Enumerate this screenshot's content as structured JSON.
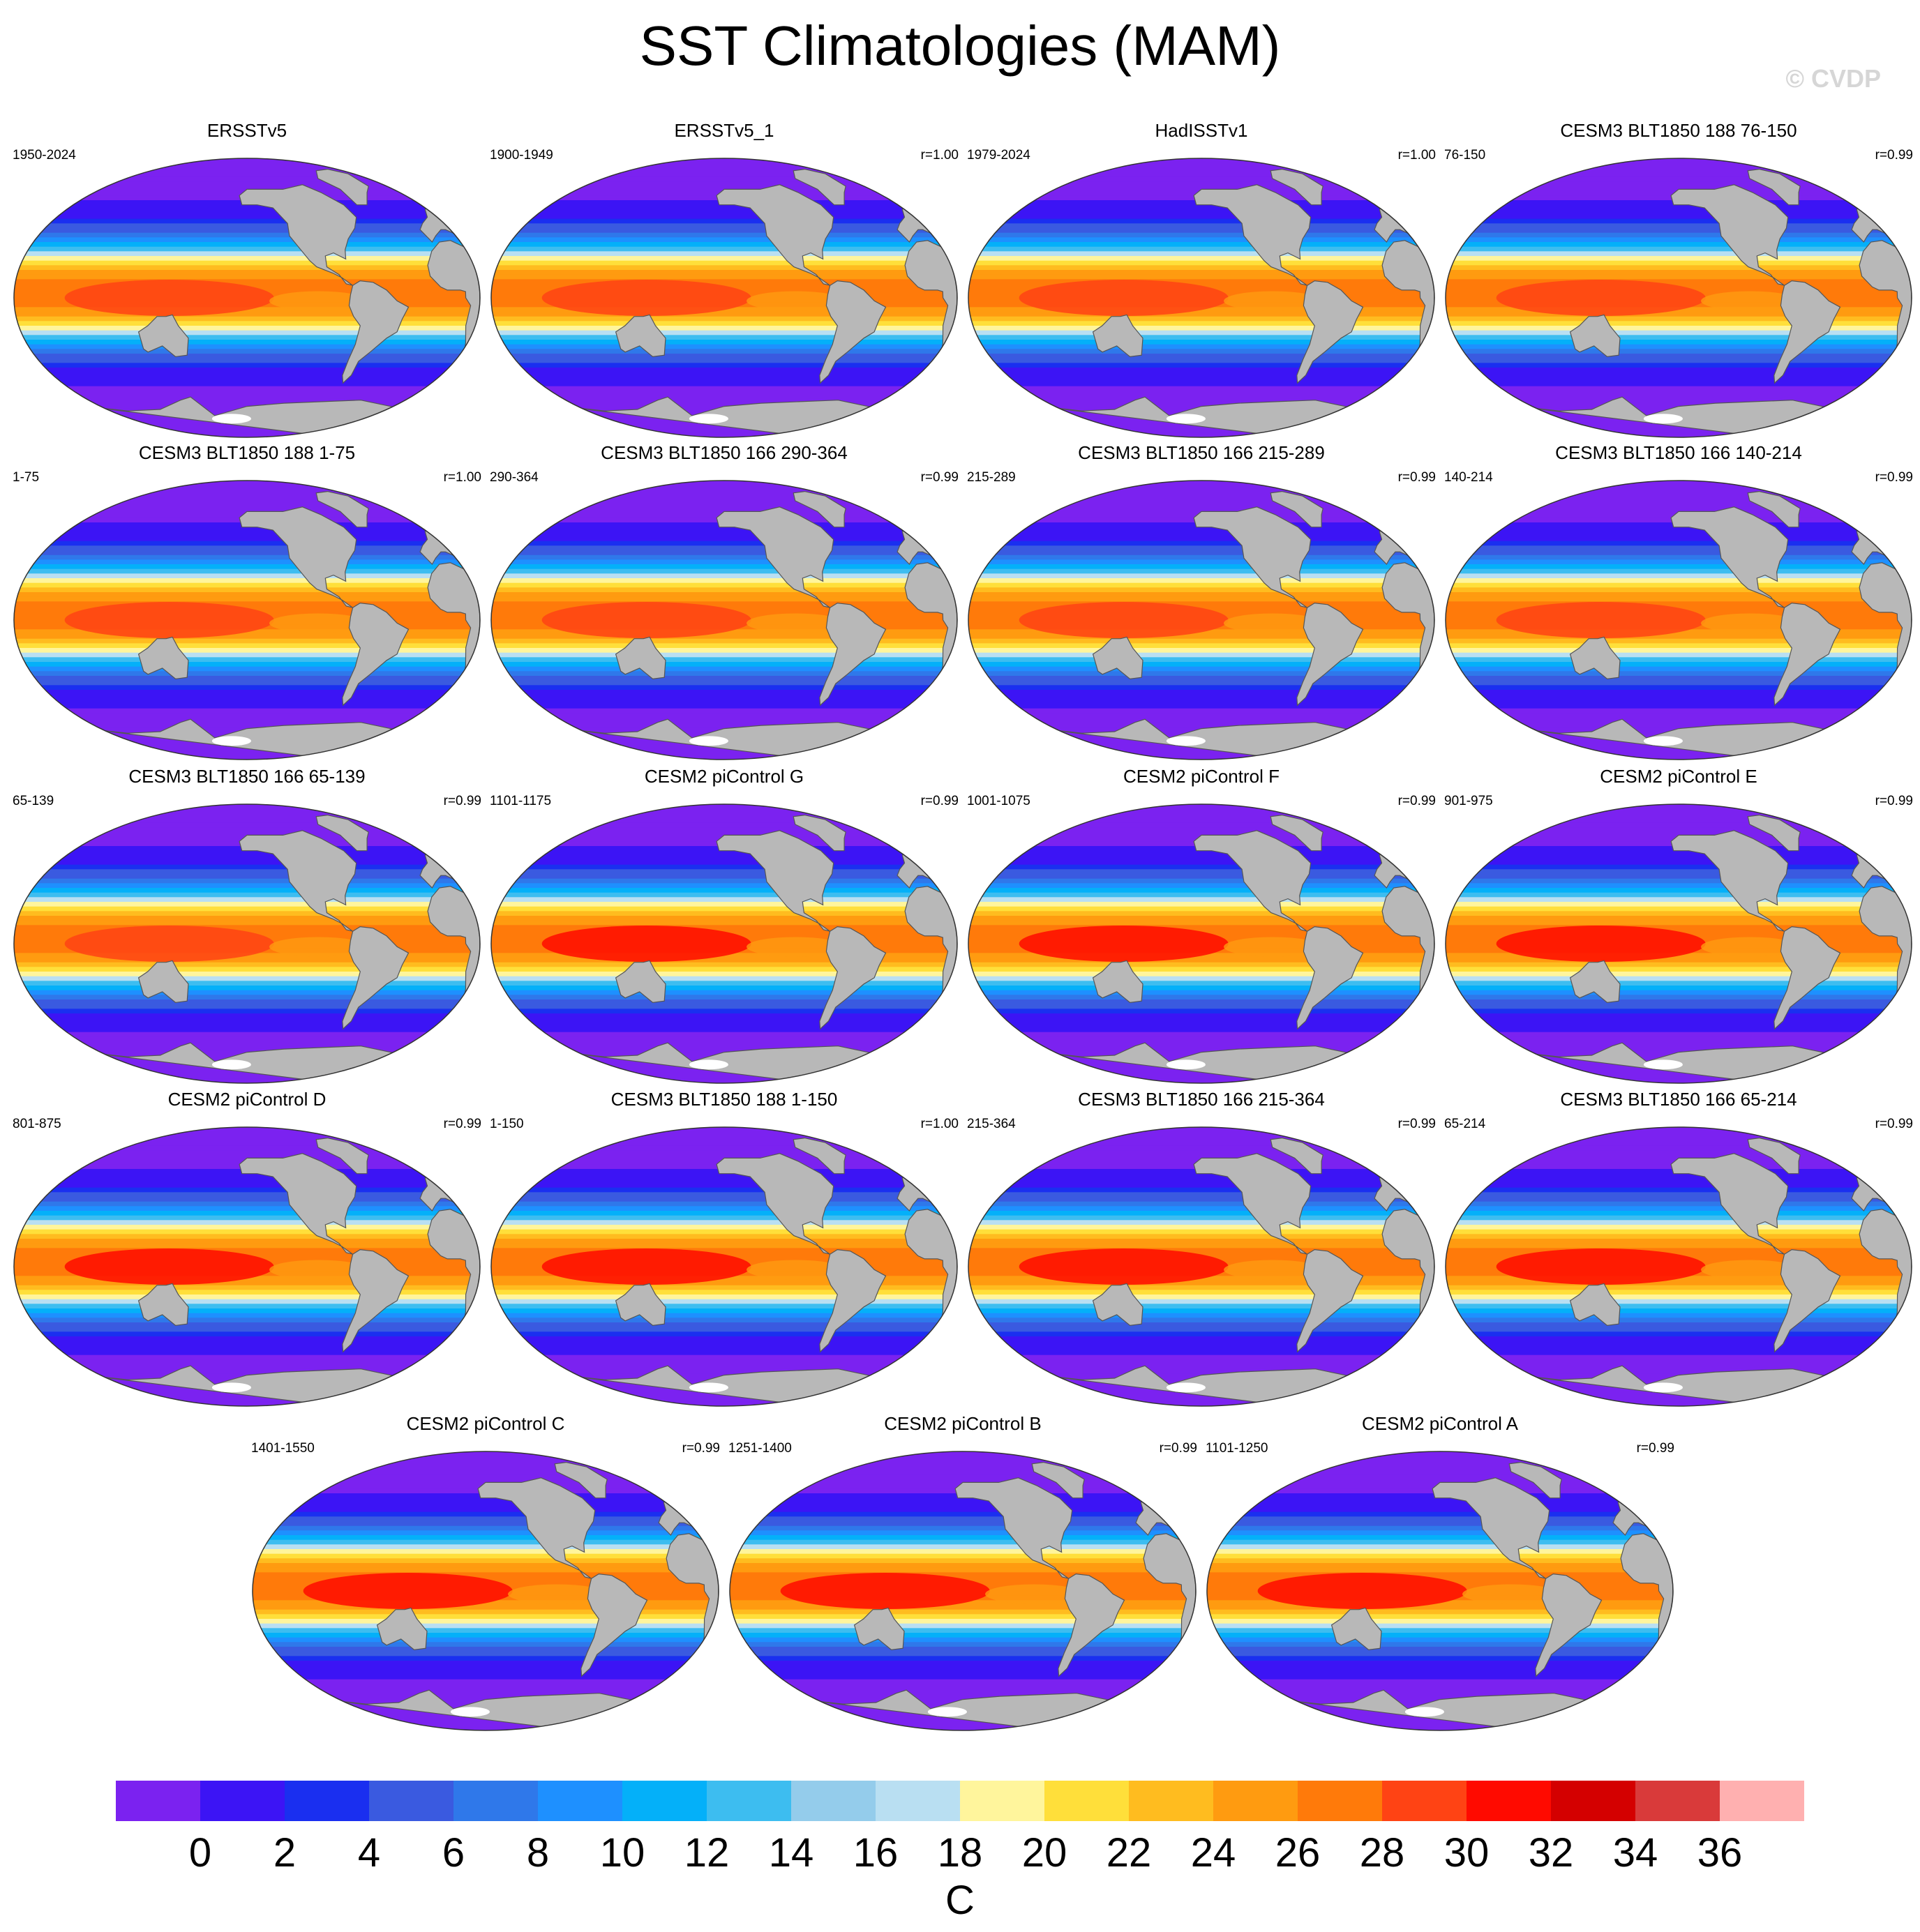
{
  "title": "SST Climatologies (MAM)",
  "watermark": "© CVDP",
  "colors": {
    "land": "#b8b8b8",
    "ice": "#ffffff",
    "coast": "#555555"
  },
  "panels": [
    {
      "title": "ERSSTv5",
      "period": "1950-2024",
      "corr": ""
    },
    {
      "title": "ERSSTv5_1",
      "period": "1900-1949",
      "corr": "r=1.00"
    },
    {
      "title": "HadISSTv1",
      "period": "1979-2024",
      "corr": "r=1.00"
    },
    {
      "title": "CESM3 BLT1850 188 76-150",
      "period": "76-150",
      "corr": "r=0.99"
    },
    {
      "title": "CESM3 BLT1850 188 1-75",
      "period": "1-75",
      "corr": "r=1.00"
    },
    {
      "title": "CESM3 BLT1850 166 290-364",
      "period": "290-364",
      "corr": "r=0.99"
    },
    {
      "title": "CESM3 BLT1850 166 215-289",
      "period": "215-289",
      "corr": "r=0.99"
    },
    {
      "title": "CESM3 BLT1850 166 140-214",
      "period": "140-214",
      "corr": "r=0.99"
    },
    {
      "title": "CESM3 BLT1850 166 65-139",
      "period": "65-139",
      "corr": "r=0.99"
    },
    {
      "title": "CESM2 piControl G",
      "period": "1101-1175",
      "corr": "r=0.99"
    },
    {
      "title": "CESM2 piControl F",
      "period": "1001-1075",
      "corr": "r=0.99"
    },
    {
      "title": "CESM2 piControl E",
      "period": "901-975",
      "corr": "r=0.99"
    },
    {
      "title": "CESM2 piControl D",
      "period": "801-875",
      "corr": "r=0.99"
    },
    {
      "title": "CESM3 BLT1850 188 1-150",
      "period": "1-150",
      "corr": "r=1.00"
    },
    {
      "title": "CESM3 BLT1850 166 215-364",
      "period": "215-364",
      "corr": "r=0.99"
    },
    {
      "title": "CESM3 BLT1850 166 65-214",
      "period": "65-214",
      "corr": "r=0.99"
    },
    {
      "title": "CESM2 piControl C",
      "period": "1401-1550",
      "corr": "r=0.99"
    },
    {
      "title": "CESM2 piControl B",
      "period": "1251-1400",
      "corr": "r=0.99"
    },
    {
      "title": "CESM2 piControl A",
      "period": "1101-1250",
      "corr": "r=0.99"
    }
  ],
  "colorbar": {
    "unit": "C",
    "ticks": [
      "0",
      "2",
      "4",
      "6",
      "8",
      "10",
      "12",
      "14",
      "16",
      "18",
      "20",
      "22",
      "24",
      "26",
      "28",
      "30",
      "32",
      "34",
      "36"
    ],
    "colors": [
      "#7b22f0",
      "#3c14f5",
      "#1a2ff0",
      "#3a5ae0",
      "#2f78ea",
      "#1e90ff",
      "#04b0f9",
      "#3dbdf0",
      "#94cceb",
      "#b9dff2",
      "#fff59c",
      "#ffdf3a",
      "#ffbc1f",
      "#ff9b10",
      "#ff7a0a",
      "#ff4314",
      "#ff0a00",
      "#d40000",
      "#d93a3a",
      "#ffb0b0"
    ]
  }
}
